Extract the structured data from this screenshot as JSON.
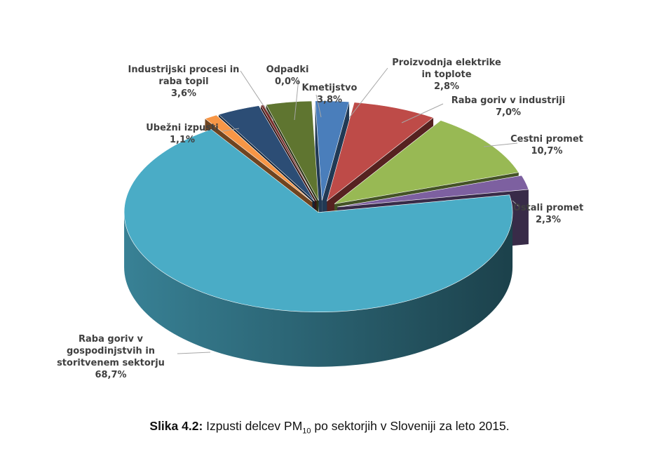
{
  "chart_data": {
    "type": "pie",
    "style": "3d-exploded",
    "unit": "%",
    "slices": [
      {
        "label": "Proizvodnja elektrike in toplote",
        "label_lines": [
          "Proizvodnja elektrike",
          "in toplote"
        ],
        "value": 2.8,
        "value_text": "2,8%",
        "color": "#4a7ebb"
      },
      {
        "label": "Raba goriv v industriji",
        "label_lines": [
          "Raba goriv v industriji"
        ],
        "value": 7.0,
        "value_text": "7,0%",
        "color": "#be4b48"
      },
      {
        "label": "Cestni promet",
        "label_lines": [
          "Cestni promet"
        ],
        "value": 10.7,
        "value_text": "10,7%",
        "color": "#98b954"
      },
      {
        "label": "Ostali promet",
        "label_lines": [
          "Ostali promet"
        ],
        "value": 2.3,
        "value_text": "2,3%",
        "color": "#7d60a0"
      },
      {
        "label": "Raba goriv v gospodinjstvih in storitvenem sektorju",
        "label_lines": [
          "Raba goriv v",
          "gospodinjstvih in",
          "storitvenem sektorju"
        ],
        "value": 68.7,
        "value_text": "68,7%",
        "color": "#4aacc6"
      },
      {
        "label": "Ubežni izpusti",
        "label_lines": [
          "Ubežni izpusti"
        ],
        "value": 1.1,
        "value_text": "1,1%",
        "color": "#f79646"
      },
      {
        "label": "Industrijski procesi in raba topil",
        "label_lines": [
          "Industrijski procesi in",
          "raba topil"
        ],
        "value": 3.6,
        "value_text": "3,6%",
        "color": "#2c4d75"
      },
      {
        "label": "Odpadki",
        "label_lines": [
          "Odpadki"
        ],
        "value": 0.0,
        "value_text": "0,0%",
        "color": "#772c2a"
      },
      {
        "label": "Kmetijstvo",
        "label_lines": [
          "Kmetijstvo"
        ],
        "value": 3.8,
        "value_text": "3,8%",
        "color": "#5f7530"
      }
    ]
  },
  "caption": {
    "prefix": "Slika 4.2:",
    "text_before_sub": " Izpusti delcev PM",
    "subscript": "10",
    "text_after_sub": " po sektorjih v Sloveniji za leto 2015."
  }
}
